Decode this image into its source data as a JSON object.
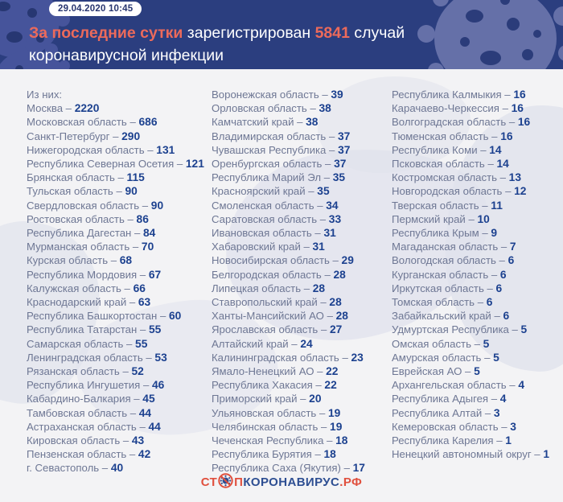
{
  "header": {
    "date_badge": "29.04.2020 10:45",
    "title": {
      "accent1": "За последние сутки",
      "middle": " зарегистрирован ",
      "accent2": "5841",
      "tail": " случай",
      "line2": "коронавирусной инфекции"
    }
  },
  "list": {
    "intro": "Из них:",
    "separator": "–",
    "columns": [
      [
        {
          "name": "Москва",
          "value": "2220"
        },
        {
          "name": "Московская область",
          "value": "686"
        },
        {
          "name": "Санкт-Петербург",
          "value": "290"
        },
        {
          "name": "Нижегородская область",
          "value": "131"
        },
        {
          "name": "Республика Северная Осетия",
          "value": "121"
        },
        {
          "name": "Брянская область",
          "value": "115"
        },
        {
          "name": "Тульская область",
          "value": "90"
        },
        {
          "name": "Свердловская область",
          "value": "90"
        },
        {
          "name": "Ростовская область",
          "value": "86"
        },
        {
          "name": "Республика Дагестан",
          "value": "84"
        },
        {
          "name": "Мурманская область",
          "value": "70"
        },
        {
          "name": "Курская область",
          "value": "68"
        },
        {
          "name": "Республика Мордовия",
          "value": "67"
        },
        {
          "name": "Калужская область",
          "value": "66"
        },
        {
          "name": "Краснодарский край",
          "value": "63"
        },
        {
          "name": "Республика Башкортостан",
          "value": "60"
        },
        {
          "name": "Республика Татарстан",
          "value": "55"
        },
        {
          "name": "Самарская область",
          "value": "55"
        },
        {
          "name": "Ленинградская область",
          "value": "53"
        },
        {
          "name": "Рязанская область",
          "value": "52"
        },
        {
          "name": "Республика Ингушетия",
          "value": "46"
        },
        {
          "name": "Кабардино-Балкария",
          "value": "45"
        },
        {
          "name": "Тамбовская область",
          "value": "44"
        },
        {
          "name": "Астраханская область",
          "value": "44"
        },
        {
          "name": "Кировская область",
          "value": "43"
        },
        {
          "name": "Пензенская область",
          "value": "42"
        },
        {
          "name": "г. Севастополь",
          "value": "40"
        }
      ],
      [
        {
          "name": "Воронежская область",
          "value": "39"
        },
        {
          "name": "Орловская область",
          "value": "38"
        },
        {
          "name": "Камчатский край",
          "value": "38"
        },
        {
          "name": "Владимирская область",
          "value": "37"
        },
        {
          "name": "Чувашская Республика",
          "value": "37"
        },
        {
          "name": "Оренбургская область",
          "value": "37"
        },
        {
          "name": "Республика Марий Эл",
          "value": "35"
        },
        {
          "name": "Красноярский край",
          "value": "35"
        },
        {
          "name": "Смоленская область",
          "value": "34"
        },
        {
          "name": "Саратовская область",
          "value": "33"
        },
        {
          "name": "Ивановская область",
          "value": "31"
        },
        {
          "name": "Хабаровский край",
          "value": "31"
        },
        {
          "name": "Новосибирская область",
          "value": "29"
        },
        {
          "name": "Белгородская область",
          "value": "28"
        },
        {
          "name": "Липецкая область",
          "value": "28"
        },
        {
          "name": "Ставропольский край",
          "value": "28"
        },
        {
          "name": "Ханты-Мансийский АО",
          "value": "28"
        },
        {
          "name": "Ярославская область",
          "value": "27"
        },
        {
          "name": "Алтайский край",
          "value": "24"
        },
        {
          "name": "Калининградская область",
          "value": "23"
        },
        {
          "name": "Ямало-Ненецкий АО",
          "value": "22"
        },
        {
          "name": "Республика Хакасия",
          "value": "22"
        },
        {
          "name": "Приморский край",
          "value": "20"
        },
        {
          "name": "Ульяновская область",
          "value": "19"
        },
        {
          "name": "Челябинская область",
          "value": "19"
        },
        {
          "name": "Чеченская Республика",
          "value": "18"
        },
        {
          "name": "Республика Бурятия",
          "value": "18"
        },
        {
          "name": "Республика Саха (Якутия)",
          "value": "17"
        }
      ],
      [
        {
          "name": "Республика Калмыкия",
          "value": "16"
        },
        {
          "name": "Карачаево-Черкессия",
          "value": "16"
        },
        {
          "name": "Волгоградская область",
          "value": "16"
        },
        {
          "name": "Тюменская область",
          "value": "16"
        },
        {
          "name": "Республика Коми",
          "value": "14"
        },
        {
          "name": "Псковская область",
          "value": "14"
        },
        {
          "name": "Костромская область",
          "value": "13"
        },
        {
          "name": "Новгородская область",
          "value": "12"
        },
        {
          "name": "Тверская область",
          "value": "11"
        },
        {
          "name": "Пермский край",
          "value": "10"
        },
        {
          "name": "Республика Крым",
          "value": "9"
        },
        {
          "name": "Магаданская область",
          "value": "7"
        },
        {
          "name": "Вологодская область",
          "value": "6"
        },
        {
          "name": "Курганская область",
          "value": "6"
        },
        {
          "name": "Иркутская область",
          "value": "6"
        },
        {
          "name": "Томская область",
          "value": "6"
        },
        {
          "name": "Забайкальский край",
          "value": "6"
        },
        {
          "name": "Удмуртская Республика",
          "value": "5"
        },
        {
          "name": "Омская область",
          "value": "5"
        },
        {
          "name": "Амурская область",
          "value": "5"
        },
        {
          "name": "Еврейская АО",
          "value": "5"
        },
        {
          "name": "Архангельская область",
          "value": "4"
        },
        {
          "name": "Республика Адыгея",
          "value": "4"
        },
        {
          "name": "Республика Алтай",
          "value": "3"
        },
        {
          "name": "Кемеровская область",
          "value": "3"
        },
        {
          "name": "Республика Карелия",
          "value": "1"
        },
        {
          "name": "Ненецкий автономный округ",
          "value": "1"
        }
      ]
    ]
  },
  "footer": {
    "logo_part1": "СТ",
    "logo_part2": "П",
    "logo_part3": "КОРОНАВИРУС",
    "logo_part4": ".РФ"
  },
  "colors": {
    "header_bg": "#2b3e7f",
    "accent_orange": "#ec6a5b",
    "region_name": "#6e7794",
    "region_value": "#1c418f",
    "body_bg": "#f3f3f5",
    "logo_red": "#e0503e",
    "logo_blue": "#2d4e92"
  }
}
